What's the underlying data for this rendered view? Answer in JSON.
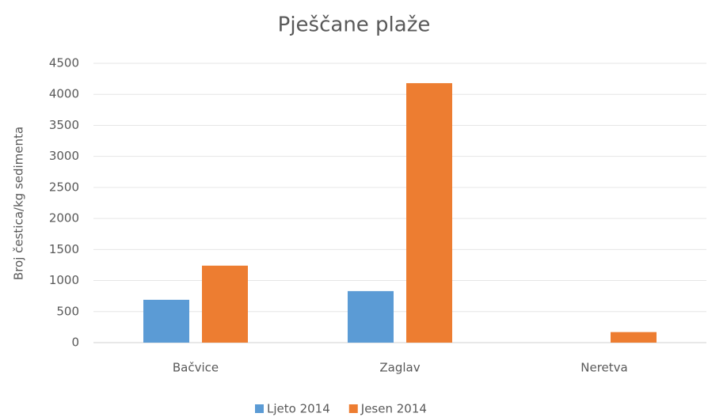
{
  "chart_data": {
    "type": "bar",
    "title": "Pješčane plaže",
    "y_label": "Broj čestica/kg sedimenta",
    "categories": [
      "Bačvice",
      "Zaglav",
      "Neretva"
    ],
    "series": [
      {
        "name": "Ljeto 2014",
        "color": "#5b9bd5",
        "values": [
          690,
          830,
          0
        ]
      },
      {
        "name": "Jesen 2014",
        "color": "#ed7d31",
        "values": [
          1240,
          4180,
          170
        ]
      }
    ],
    "ylim": [
      0,
      4500
    ],
    "yticks": [
      0,
      500,
      1000,
      1500,
      2000,
      2500,
      3000,
      3500,
      4000,
      4500
    ],
    "grid": true,
    "legend": "bottom"
  }
}
